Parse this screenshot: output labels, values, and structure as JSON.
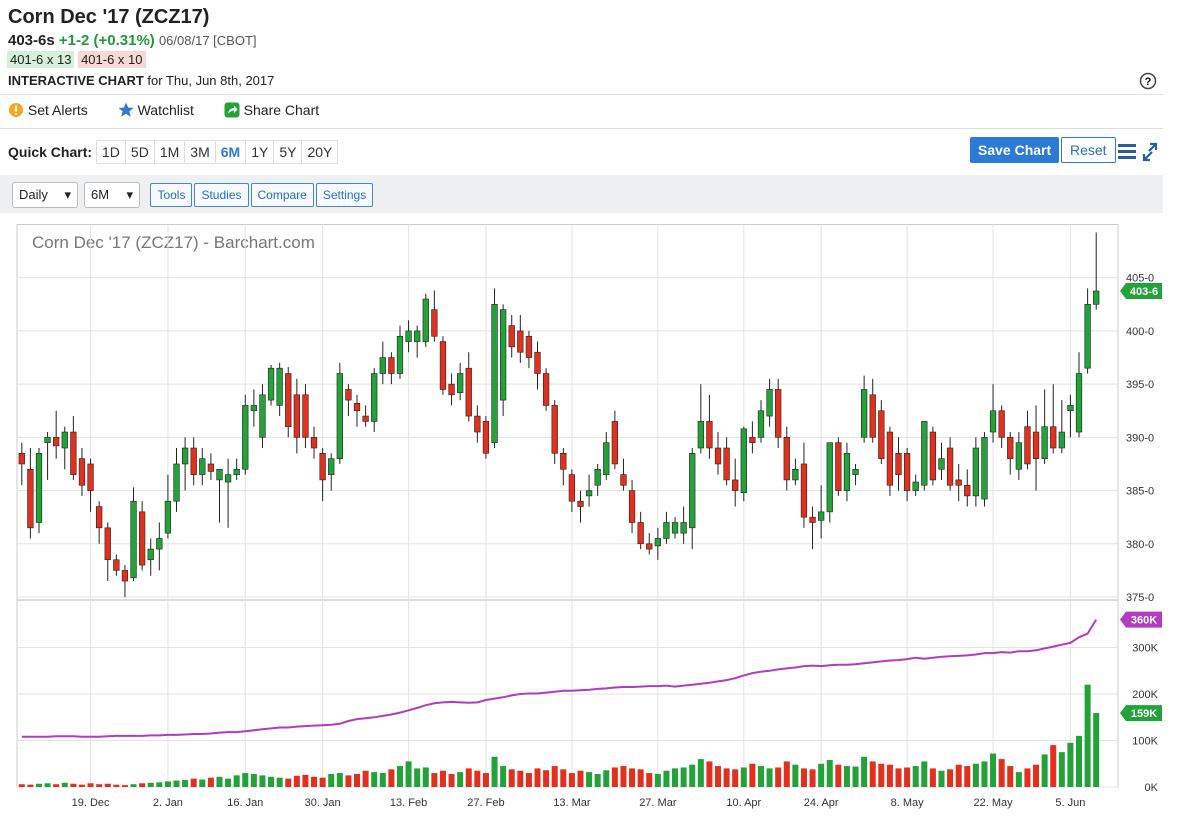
{
  "header": {
    "title": "Corn Dec '17 (ZCZ17)",
    "last": "403-6s",
    "change": "+1-2 (+0.31%)",
    "timestamp": "06/08/17 [CBOT]",
    "bid": "401-6 x 13",
    "ask": "401-6 x 10",
    "chart_label": "INTERACTIVE CHART",
    "chart_date": "for Thu, Jun 8th, 2017"
  },
  "actions": [
    "Set Alerts",
    "Watchlist",
    "Share Chart"
  ],
  "quick_chart": {
    "label": "Quick Chart:",
    "ranges": [
      "1D",
      "5D",
      "1M",
      "3M",
      "6M",
      "1Y",
      "5Y",
      "20Y"
    ],
    "active": 4,
    "save": "Save Chart",
    "reset": "Reset"
  },
  "toolbar": {
    "interval": "Daily",
    "range": "6M",
    "buttons": [
      "Tools",
      "Studies",
      "Compare",
      "Settings"
    ]
  },
  "chart_data": {
    "type": "candlestick",
    "title": "Corn Dec '17 (ZCZ17) - Barchart.com",
    "up_color": "#23a23a",
    "down_color": "#e2301f",
    "categories": [
      null,
      null,
      null,
      null,
      null,
      null,
      null,
      null,
      "19. Dec",
      null,
      null,
      null,
      null,
      null,
      null,
      null,
      null,
      "2. Jan",
      null,
      null,
      null,
      null,
      null,
      null,
      null,
      null,
      "16. Jan",
      null,
      null,
      null,
      null,
      null,
      null,
      null,
      null,
      "30. Jan",
      null,
      null,
      null,
      null,
      null,
      null,
      null,
      null,
      null,
      "13. Feb",
      null,
      null,
      null,
      null,
      null,
      null,
      null,
      null,
      "27. Feb",
      null,
      null,
      null,
      null,
      null,
      null,
      null,
      null,
      null,
      "13. Mar",
      null,
      null,
      null,
      null,
      null,
      null,
      null,
      null,
      null,
      "27. Mar",
      null,
      null,
      null,
      null,
      null,
      null,
      null,
      null,
      null,
      "10. Apr",
      null,
      null,
      null,
      null,
      null,
      null,
      null,
      null,
      "24. Apr",
      null,
      null,
      null,
      null,
      null,
      null,
      null,
      null,
      null,
      "8. May",
      null,
      null,
      null,
      null,
      null,
      null,
      null,
      null,
      null,
      "22. May",
      null,
      null,
      null,
      null,
      null,
      null,
      null,
      null,
      "5. Jun",
      null,
      null,
      null
    ],
    "open": [
      388.5,
      387,
      382,
      389.5,
      390,
      389,
      390.5,
      388,
      387.5,
      383.5,
      381.5,
      378.5,
      377.5,
      376.8,
      383,
      378.5,
      379.5,
      381,
      384,
      387.5,
      389,
      386.5,
      387.5,
      386,
      385.8,
      386.5,
      387,
      392.5,
      390,
      393.5,
      393,
      396,
      394,
      394,
      390,
      388.5,
      386.5,
      388,
      394.5,
      393.2,
      392,
      391.5,
      396,
      397.5,
      396,
      399,
      399,
      399,
      402,
      399,
      395,
      394.2,
      396.5,
      392,
      391.5,
      389.5,
      393.5,
      400.5,
      400,
      399.5,
      398,
      396,
      393,
      388.5,
      386.5,
      384,
      384.5,
      385.5,
      386.5,
      391.5,
      386.5,
      385,
      382,
      380,
      379.8,
      380.5,
      381,
      381,
      381.5,
      389,
      391.5,
      389,
      389,
      386,
      384.8,
      390,
      390,
      392,
      394.5,
      390,
      386,
      387.5,
      382.5,
      382.2,
      383,
      389.5,
      385,
      386.5,
      390,
      394,
      392.5,
      390.5,
      388.5,
      388.5,
      385,
      385.5,
      390.5,
      387,
      389,
      386,
      385.5,
      384.5,
      384.2,
      390.5,
      392.5,
      390,
      387,
      391,
      390.5,
      388,
      391,
      389,
      392.5,
      390.5,
      396.5,
      402.5
    ],
    "high": [
      389.5,
      389,
      389,
      390.5,
      392.5,
      391,
      392,
      389,
      388,
      384,
      382,
      379,
      378,
      385.3,
      384,
      380.5,
      382,
      386.5,
      389,
      390,
      390,
      389,
      388.5,
      387,
      388,
      388,
      394,
      394.5,
      395,
      396.8,
      397,
      396.6,
      395.5,
      395,
      391,
      389,
      388.5,
      397,
      395,
      394,
      393,
      396.5,
      399,
      398,
      400.5,
      401,
      400.5,
      403.5,
      403.8,
      399.5,
      396,
      397,
      398,
      393,
      392,
      404,
      402.5,
      401.5,
      401.5,
      400,
      399,
      396.5,
      393.5,
      389,
      387,
      385,
      386.5,
      387.5,
      390.5,
      392.5,
      388,
      386,
      383,
      381,
      381.5,
      383,
      382.5,
      383.5,
      389,
      395,
      394,
      390.5,
      390,
      388,
      391,
      391.5,
      393.5,
      395.5,
      395.5,
      391,
      388,
      389.5,
      383.5,
      385.5,
      389.5,
      390,
      389.5,
      387.5,
      395.8,
      395.5,
      393.5,
      391,
      390,
      389,
      386.5,
      391.5,
      391,
      389.5,
      390,
      387.5,
      387,
      390,
      390.5,
      395,
      393,
      390.5,
      390.5,
      392.5,
      393,
      394.5,
      395,
      393.5,
      394,
      398,
      404,
      409.25
    ],
    "low": [
      385.5,
      380.5,
      381,
      386,
      388,
      387,
      386,
      384.5,
      383,
      380,
      376.5,
      377,
      375,
      376.5,
      377.5,
      377,
      377.5,
      380.5,
      383,
      385,
      385.5,
      385.5,
      386,
      382,
      381.5,
      386,
      386.5,
      391,
      389,
      393,
      392,
      390,
      388.5,
      389,
      388,
      384,
      385,
      387.5,
      392,
      391,
      391,
      390.5,
      395,
      395,
      395.5,
      398,
      397.5,
      398.5,
      399,
      394,
      393,
      393.5,
      391.5,
      389.5,
      388,
      389,
      392,
      397.5,
      397,
      396.5,
      394.5,
      392.5,
      387.5,
      385.5,
      383,
      382,
      383.5,
      384.5,
      386,
      387,
      385,
      381,
      379.5,
      379,
      378.5,
      380,
      380.5,
      380,
      379.5,
      388.5,
      388,
      386.5,
      385.5,
      383.5,
      384,
      388.5,
      389.5,
      391,
      389,
      385,
      385.5,
      381.5,
      379.5,
      380.5,
      382,
      384.5,
      384,
      385.5,
      389.5,
      389.5,
      387.5,
      384.5,
      385,
      384,
      384.5,
      385,
      385.5,
      386,
      385,
      384,
      383.5,
      383.5,
      383.5,
      389.5,
      389,
      386.5,
      386,
      387,
      385,
      387.5,
      388.5,
      388.5,
      390,
      390,
      396,
      402
    ],
    "close": [
      387.5,
      381.5,
      388.5,
      390,
      389.2,
      390.5,
      386.5,
      385.5,
      385,
      381.5,
      378.5,
      377.5,
      376.5,
      384,
      378,
      379.5,
      380.5,
      384,
      387.5,
      389,
      386.5,
      388,
      386.8,
      387,
      386.5,
      387,
      393,
      393,
      394,
      396.5,
      396.5,
      391,
      390,
      390,
      389,
      386,
      388,
      396,
      393.5,
      392.5,
      391.5,
      396,
      397.5,
      396,
      399.5,
      400,
      400,
      403,
      399.5,
      394.5,
      394,
      396,
      392,
      390.5,
      388.5,
      402.5,
      402,
      398.5,
      398,
      397.5,
      396,
      393,
      388.5,
      387,
      384,
      383.5,
      385,
      387,
      389.5,
      387.5,
      385.5,
      382,
      380,
      379.5,
      380.5,
      382,
      382,
      382,
      388.5,
      391.5,
      389,
      387.5,
      386,
      385,
      390.8,
      389.5,
      392.5,
      394.5,
      390,
      386,
      387,
      382.5,
      382,
      383,
      389.5,
      385,
      388.5,
      387,
      394.5,
      390,
      388,
      385.5,
      386.5,
      385,
      385.8,
      391.5,
      386,
      388,
      385.5,
      385.5,
      384.5,
      389,
      390,
      392.5,
      390,
      388,
      389.5,
      387.5,
      388,
      391,
      389,
      390.5,
      393,
      396,
      402.5,
      403.75
    ],
    "last_label": "403-6",
    "ylim": [
      375,
      410
    ],
    "yticks": [
      {
        "value": 375,
        "label": "375-0"
      },
      {
        "value": 380,
        "label": "380-0"
      },
      {
        "value": 385,
        "label": "385-0"
      },
      {
        "value": 390,
        "label": "390-0"
      },
      {
        "value": 395,
        "label": "395-0"
      },
      {
        "value": 400,
        "label": "400-0"
      },
      {
        "value": 405,
        "label": "405-0"
      }
    ],
    "grid": true,
    "volume": {
      "values": [
        6,
        5,
        7,
        8,
        6,
        9,
        7,
        5,
        8,
        6,
        7,
        5,
        4,
        6,
        8,
        9,
        10,
        12,
        14,
        15,
        18,
        16,
        20,
        22,
        18,
        25,
        30,
        28,
        25,
        22,
        20,
        18,
        24,
        26,
        22,
        20,
        28,
        30,
        25,
        28,
        35,
        32,
        30,
        38,
        45,
        55,
        40,
        42,
        30,
        35,
        28,
        32,
        40,
        35,
        30,
        65,
        45,
        38,
        35,
        30,
        40,
        36,
        45,
        38,
        30,
        35,
        32,
        28,
        36,
        42,
        45,
        40,
        38,
        30,
        28,
        35,
        40,
        42,
        48,
        60,
        55,
        45,
        40,
        38,
        42,
        50,
        45,
        40,
        42,
        55,
        48,
        40,
        38,
        50,
        58,
        48,
        45,
        44,
        65,
        55,
        50,
        48,
        40,
        42,
        45,
        55,
        40,
        35,
        38,
        48,
        45,
        50,
        55,
        72,
        60,
        45,
        32,
        40,
        48,
        70,
        90,
        75,
        95,
        110,
        220,
        159
      ],
      "last_label": "159K",
      "ylim": [
        0,
        400
      ],
      "yticks": [
        {
          "value": 0,
          "label": "0K"
        },
        {
          "value": 100,
          "label": "100K"
        },
        {
          "value": 200,
          "label": "200K"
        },
        {
          "value": 300,
          "label": "300K"
        }
      ]
    },
    "open_interest": {
      "color": "#b13cc1",
      "last_label": "360K",
      "values": [
        108,
        108,
        108,
        108,
        109,
        109,
        109,
        108,
        108,
        108,
        109,
        110,
        110,
        110,
        110,
        111,
        111,
        112,
        112,
        113,
        114,
        114,
        115,
        117,
        118,
        118,
        120,
        122,
        124,
        126,
        128,
        128,
        130,
        131,
        132,
        133,
        134,
        136,
        142,
        146,
        148,
        150,
        153,
        156,
        160,
        165,
        170,
        176,
        180,
        182,
        183,
        182,
        181,
        182,
        187,
        190,
        193,
        197,
        200,
        201,
        201,
        203,
        205,
        207,
        207,
        208,
        209,
        211,
        212,
        214,
        215,
        215,
        216,
        217,
        217,
        218,
        216,
        218,
        220,
        222,
        224,
        227,
        230,
        234,
        240,
        245,
        248,
        250,
        253,
        255,
        257,
        260,
        261,
        260,
        262,
        263,
        263,
        264,
        266,
        268,
        270,
        272,
        273,
        275,
        278,
        276,
        278,
        280,
        281,
        282,
        283,
        285,
        288,
        288,
        290,
        289,
        292,
        292,
        294,
        298,
        302,
        306,
        310,
        322,
        330,
        360
      ]
    }
  }
}
